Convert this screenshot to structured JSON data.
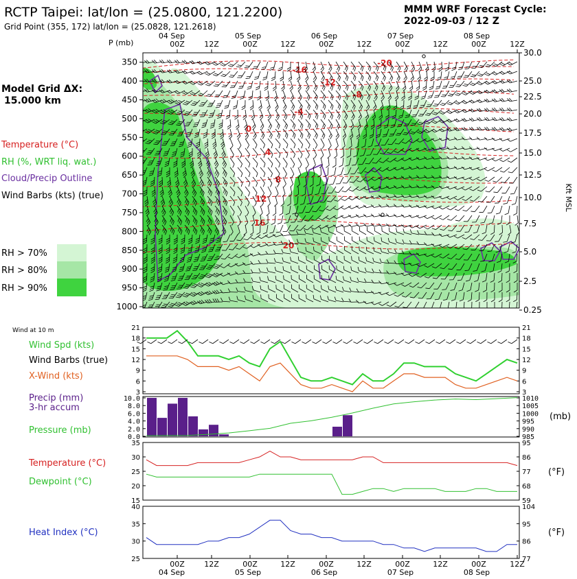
{
  "header": {
    "title": "RCTP Taipei:  lat/lon = (25.0800, 121.2200)",
    "grid_point": "Grid Point (355, 172) lat/lon = (25.0828, 121.2618)",
    "forecast_line1": "MMM WRF Forecast Cycle:",
    "forecast_line2": "2022-09-03 / 12  Z"
  },
  "left_legend": {
    "grid_label": "Model Grid ΔX:",
    "grid_value": "15.000 km",
    "temperature": "Temperature (°C)",
    "rh": "RH (%, WRT liq. wat.)",
    "cloud": "Cloud/Precip Outline",
    "wind_barbs": "Wind Barbs (kts) (true)",
    "rh70": "RH > 70%",
    "rh80": "RH > 80%",
    "rh90": "RH > 90%"
  },
  "colors": {
    "rh70": "#d4f5d4",
    "rh80": "#a6e6a6",
    "rh90": "#3fd33f",
    "temp": "#d62020",
    "cloud": "#6a2fa0",
    "wind": "#30d030",
    "xwind": "#e06020",
    "pressure": "#30c030",
    "precip": "#5a1f8a",
    "dew": "#30c030",
    "heat": "#2030c0"
  },
  "time_axis": {
    "dates": [
      "04 Sep",
      "05 Sep",
      "06 Sep",
      "07 Sep",
      "08 Sep"
    ],
    "hours": [
      "00Z",
      "12Z",
      "00Z",
      "12Z",
      "00Z",
      "12Z",
      "00Z",
      "12Z",
      "00Z",
      "12Z"
    ]
  },
  "upper_panel": {
    "p_label": "P  (mb)",
    "p_ticks": [
      "350",
      "400",
      "450",
      "500",
      "550",
      "600",
      "650",
      "700",
      "750",
      "800",
      "850",
      "900",
      "950",
      "1000"
    ],
    "right_ticks": [
      "30.0",
      "25.0",
      "22.5",
      "20.0",
      "17.5",
      "15.0",
      "12.5",
      "10.0",
      "7.5",
      "5.0",
      "2.5",
      "0.25"
    ],
    "right_axis_label": "Kft MSL",
    "temp_labels": [
      "-20",
      "-16",
      "-12",
      "-8",
      "-4",
      "0",
      "4",
      "8",
      "12",
      "16",
      "20"
    ]
  },
  "lower_panels": {
    "wind_title": "Wind at 10 m",
    "wind_spd": "Wind Spd (kts)",
    "wind_barbs": "Wind Barbs (true)",
    "xwind": "X-Wind (kts)",
    "wind_ticks": [
      "21",
      "18",
      "15",
      "12",
      "9",
      "6",
      "3"
    ],
    "precip": "Precip (mm)",
    "precip_accum": "3-hr accum",
    "pressure": "Pressure (mb)",
    "precip_ticks": [
      "10.0",
      "8.0",
      "6.0",
      "4.0",
      "2.0",
      "0.0"
    ],
    "pressure_ticks": [
      "1010",
      "1005",
      "1000",
      "995",
      "990",
      "985"
    ],
    "pressure_unit": "(mb)",
    "temperature": "Temperature (°C)",
    "dewpoint": "Dewpoint (°C)",
    "temp_ticks_c": [
      "35",
      "30",
      "25",
      "20",
      "15"
    ],
    "temp_ticks_f": [
      "95",
      "86",
      "77",
      "68",
      "59"
    ],
    "temp_unit_f": "(°F)",
    "heat_index": "Heat Index (°C)",
    "heat_ticks_c": [
      "40",
      "35",
      "30",
      "25"
    ],
    "heat_ticks_f": [
      "104",
      "95",
      "86",
      "77"
    ],
    "heat_unit_f": "(°F)"
  },
  "chart_data": [
    {
      "type": "line",
      "title": "Wind at 10 m",
      "x": [
        0,
        3,
        6,
        9,
        12,
        15,
        18,
        21,
        24,
        27,
        30,
        33,
        36,
        39,
        42,
        45,
        48,
        51,
        54,
        57,
        60,
        63,
        66,
        69,
        72,
        75,
        78,
        81,
        84,
        87,
        90,
        93,
        96,
        99,
        102,
        105,
        108
      ],
      "series": [
        {
          "name": "Wind Spd (kts)",
          "values": [
            18,
            18,
            18,
            20,
            17,
            13,
            13,
            13,
            12,
            13,
            11,
            10,
            15,
            17,
            12,
            7,
            6,
            6,
            7,
            6,
            5,
            8,
            6,
            6,
            8,
            11,
            11,
            10,
            10,
            10,
            8,
            7,
            6,
            8,
            10,
            12,
            11
          ]
        },
        {
          "name": "X-Wind (kts)",
          "values": [
            13,
            13,
            13,
            13,
            12,
            10,
            10,
            10,
            9,
            10,
            8,
            6,
            10,
            11,
            8,
            5,
            4,
            4,
            5,
            4,
            3,
            6,
            4,
            4,
            6,
            8,
            8,
            7,
            7,
            7,
            5,
            4,
            4,
            5,
            6,
            7,
            6
          ]
        }
      ],
      "ylim": [
        3,
        21
      ]
    },
    {
      "type": "bar",
      "title": "Precip (mm) 3-hr accum",
      "x": [
        0,
        3,
        6,
        9,
        12,
        15,
        18,
        21,
        24,
        27,
        30,
        33,
        36,
        39,
        42,
        45,
        48,
        51,
        54,
        57,
        60,
        63,
        66,
        69,
        72,
        75,
        78,
        81,
        84,
        87,
        90,
        93,
        96,
        99,
        102,
        105,
        108
      ],
      "values": [
        10.0,
        4.8,
        8.5,
        10.0,
        5.2,
        1.8,
        3.0,
        0.5,
        0,
        0,
        0,
        0,
        0,
        0,
        0,
        0,
        0,
        0,
        2.5,
        5.5,
        0,
        0,
        0,
        0,
        0,
        0,
        0,
        0,
        0,
        0,
        0,
        0,
        0,
        0,
        0,
        0,
        0
      ],
      "ylim": [
        0,
        10
      ]
    },
    {
      "type": "line",
      "title": "Pressure (mb)",
      "x": [
        0,
        6,
        12,
        18,
        24,
        30,
        36,
        42,
        48,
        54,
        60,
        66,
        72,
        78,
        84,
        90,
        96,
        102,
        108
      ],
      "values": [
        985.4,
        985.5,
        985.6,
        986.3,
        987.2,
        988.6,
        990.2,
        993.5,
        995.1,
        997.4,
        1000.2,
        1003.3,
        1006.1,
        1007.5,
        1008.6,
        1009.3,
        1008.9,
        1009.5,
        1010.2
      ],
      "ylim": [
        985,
        1010
      ]
    },
    {
      "type": "line",
      "title": "Temperature / Dewpoint (°C)",
      "x": [
        0,
        3,
        6,
        9,
        12,
        15,
        18,
        21,
        24,
        27,
        30,
        33,
        36,
        39,
        42,
        45,
        48,
        51,
        54,
        57,
        60,
        63,
        66,
        69,
        72,
        75,
        78,
        81,
        84,
        87,
        90,
        93,
        96,
        99,
        102,
        105,
        108
      ],
      "series": [
        {
          "name": "Temperature (°C)",
          "values": [
            29,
            27,
            27,
            27,
            27,
            28,
            28,
            28,
            28,
            28,
            29,
            30,
            32,
            30,
            30,
            29,
            29,
            29,
            29,
            29,
            29,
            30,
            30,
            28,
            28,
            28,
            28,
            28,
            28,
            28,
            28,
            28,
            28,
            28,
            28,
            28,
            27
          ]
        },
        {
          "name": "Dewpoint (°C)",
          "values": [
            24,
            23,
            23,
            23,
            23,
            23,
            23,
            23,
            23,
            23,
            23,
            24,
            24,
            24,
            24,
            24,
            24,
            24,
            24,
            17,
            17,
            18,
            19,
            19,
            18,
            19,
            19,
            19,
            19,
            18,
            18,
            18,
            19,
            19,
            18,
            18,
            18
          ]
        }
      ],
      "ylim": [
        15,
        35
      ]
    },
    {
      "type": "line",
      "title": "Heat Index (°C)",
      "x": [
        0,
        3,
        6,
        9,
        12,
        15,
        18,
        21,
        24,
        27,
        30,
        33,
        36,
        39,
        42,
        45,
        48,
        51,
        54,
        57,
        60,
        63,
        66,
        69,
        72,
        75,
        78,
        81,
        84,
        87,
        90,
        93,
        96,
        99,
        102,
        105,
        108
      ],
      "values": [
        31,
        29,
        29,
        29,
        29,
        29,
        30,
        30,
        31,
        31,
        32,
        34,
        36,
        36,
        33,
        32,
        32,
        31,
        31,
        30,
        30,
        30,
        30,
        29,
        29,
        28,
        28,
        27,
        28,
        28,
        28,
        28,
        28,
        27,
        27,
        29,
        29
      ],
      "ylim": [
        25,
        40
      ]
    }
  ]
}
